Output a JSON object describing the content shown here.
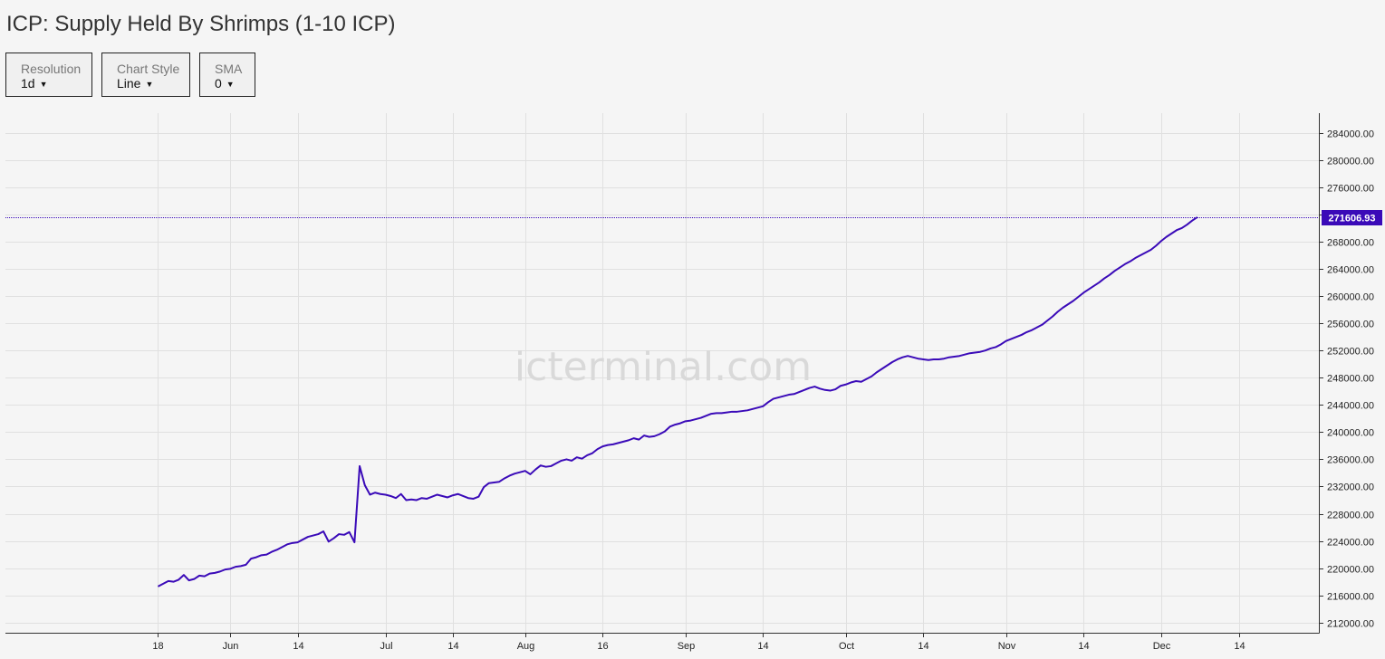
{
  "title": "ICP: Supply Held By Shrimps (1-10 ICP)",
  "controls": [
    {
      "label": "Resolution",
      "value": "1d"
    },
    {
      "label": "Chart Style",
      "value": "Line"
    },
    {
      "label": "SMA",
      "value": "0"
    }
  ],
  "watermark": "icterminal.com",
  "colors": {
    "line": "#3a0ab8",
    "last_value_bg": "#3a0ab8",
    "grid": "#e0e0e0",
    "axis": "#333333",
    "background": "#f5f5f5"
  },
  "chart_data": {
    "type": "line",
    "title": "ICP: Supply Held By Shrimps (1-10 ICP)",
    "xlabel": "",
    "ylabel": "",
    "grid": true,
    "x_ticks": [
      "18",
      "Jun",
      "14",
      "Jul",
      "14",
      "Aug",
      "16",
      "Sep",
      "14",
      "Oct",
      "14",
      "Nov",
      "14",
      "Dec",
      "14"
    ],
    "x_tick_days": [
      0,
      14,
      27,
      44,
      57,
      71,
      86,
      102,
      117,
      133,
      148,
      164,
      179,
      194,
      209
    ],
    "y_ticks": [
      212000,
      216000,
      220000,
      224000,
      228000,
      232000,
      236000,
      240000,
      244000,
      248000,
      252000,
      256000,
      260000,
      264000,
      268000,
      272000,
      276000,
      280000,
      284000
    ],
    "y_tick_labels": [
      "212000.00",
      "216000.00",
      "220000.00",
      "224000.00",
      "228000.00",
      "232000.00",
      "236000.00",
      "240000.00",
      "244000.00",
      "248000.00",
      "252000.00",
      "256000.00",
      "260000.00",
      "264000.00",
      "268000.00",
      "272000.00",
      "276000.00",
      "280000.00",
      "284000.00"
    ],
    "ylim": [
      210500,
      286900
    ],
    "xlim_days": [
      -29.5,
      224.5
    ],
    "last_value": 271606.93,
    "last_value_label": "271606.93",
    "series": [
      {
        "values": [
          217300,
          217700,
          218100,
          218000,
          218300,
          219000,
          218200,
          218400,
          218900,
          218800,
          219200,
          219300,
          219500,
          219800,
          219900,
          220200,
          220300,
          220500,
          221400,
          221600,
          221900,
          222000,
          222400,
          222700,
          223100,
          223500,
          223700,
          223800,
          224200,
          224600,
          224800,
          225000,
          225400,
          223900,
          224400,
          225000,
          224900,
          225300,
          223800,
          235000,
          232200,
          230800,
          231100,
          230900,
          230800,
          230600,
          230300,
          230900,
          230000,
          230100,
          230000,
          230300,
          230200,
          230500,
          230800,
          230600,
          230400,
          230700,
          230900,
          230600,
          230300,
          230200,
          230500,
          231900,
          232500,
          232600,
          232700,
          233200,
          233600,
          233900,
          234100,
          234300,
          233800,
          234500,
          235100,
          234900,
          235000,
          235400,
          235800,
          236000,
          235800,
          236300,
          236100,
          236600,
          236900,
          237500,
          237900,
          238100,
          238200,
          238400,
          238600,
          238800,
          239100,
          238900,
          239500,
          239300,
          239400,
          239700,
          240100,
          240800,
          241100,
          241300,
          241600,
          241700,
          241900,
          242100,
          242400,
          242700,
          242800,
          242800,
          242900,
          243000,
          243000,
          243100,
          243200,
          243400,
          243600,
          243800,
          244400,
          244900,
          245100,
          245300,
          245500,
          245600,
          245900,
          246200,
          246500,
          246700,
          246400,
          246200,
          246100,
          246300,
          246800,
          247000,
          247300,
          247500,
          247400,
          247800,
          248200,
          248800,
          249300,
          249800,
          250300,
          250700,
          251000,
          251200,
          251000,
          250800,
          250700,
          250600,
          250700,
          250700,
          250800,
          251000,
          251100,
          251200,
          251400,
          251600,
          251700,
          251800,
          252000,
          252300,
          252500,
          252900,
          253400,
          253700,
          254000,
          254300,
          254700,
          255000,
          255400,
          255800,
          256400,
          257000,
          257700,
          258300,
          258800,
          259300,
          259900,
          260500,
          261000,
          261500,
          262000,
          262600,
          263100,
          263700,
          264200,
          264700,
          265100,
          265600,
          266000,
          266400,
          266800,
          267400,
          268100,
          268700,
          269200,
          269700,
          270000,
          270500,
          271100,
          271606.93
        ]
      }
    ]
  }
}
